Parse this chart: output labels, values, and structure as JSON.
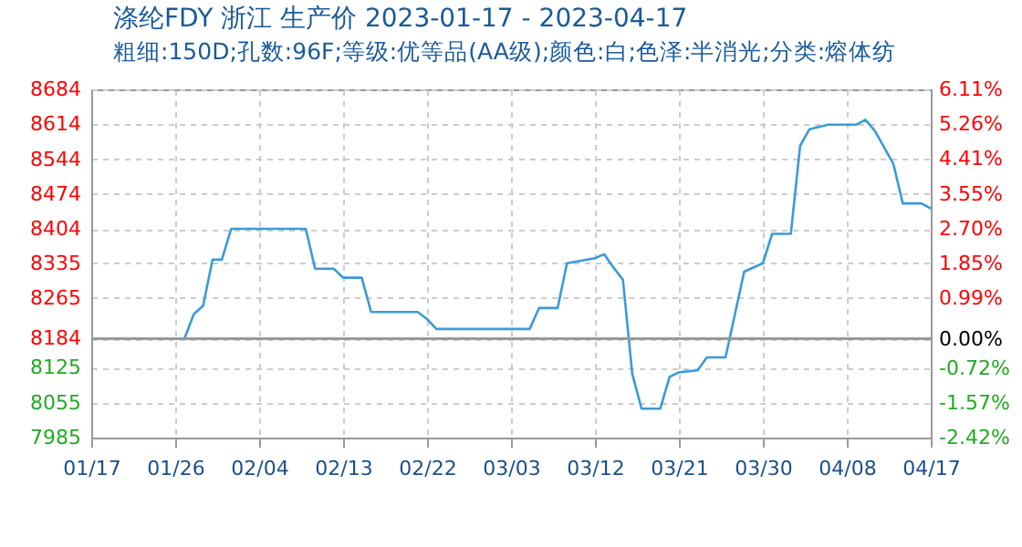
{
  "chart_data": {
    "type": "line",
    "title": "涤纶FDY 浙江 生产价 2023-01-17 - 2023-04-17",
    "subtitle": "粗细:150D;孔数:96F;等级:优等品(AA级);颜色:白;色泽:半消光;分类:熔体纺",
    "x": [
      "2023-01-17",
      "2023-01-27",
      "2023-01-28",
      "2023-01-29",
      "2023-01-30",
      "2023-01-31",
      "2023-02-01",
      "2023-02-09",
      "2023-02-10",
      "2023-02-12",
      "2023-02-13",
      "2023-02-15",
      "2023-02-16",
      "2023-02-21",
      "2023-02-22",
      "2023-02-23",
      "2023-03-05",
      "2023-03-06",
      "2023-03-08",
      "2023-03-09",
      "2023-03-12",
      "2023-03-13",
      "2023-03-14",
      "2023-03-15",
      "2023-03-16",
      "2023-03-17",
      "2023-03-19",
      "2023-03-20",
      "2023-03-21",
      "2023-03-23",
      "2023-03-24",
      "2023-03-26",
      "2023-03-28",
      "2023-03-30",
      "2023-03-31",
      "2023-04-02",
      "2023-04-03",
      "2023-04-04",
      "2023-04-06",
      "2023-04-09",
      "2023-04-10",
      "2023-04-11",
      "2023-04-13",
      "2023-04-14",
      "2023-04-16",
      "2023-04-17"
    ],
    "series": [
      {
        "color": "#3a9ad9",
        "values": [
          8184,
          8184,
          8233,
          8250,
          8342,
          8342,
          8404,
          8404,
          8324,
          8324,
          8306,
          8306,
          8237,
          8237,
          8223,
          8203,
          8203,
          8245,
          8245,
          8335,
          8345,
          8353,
          8326,
          8302,
          8113,
          8043,
          8043,
          8107,
          8116,
          8120,
          8146,
          8146,
          8318,
          8335,
          8394,
          8394,
          8571,
          8604,
          8613,
          8613,
          8623,
          8601,
          8534,
          8455,
          8455,
          8445
        ]
      }
    ],
    "xlim": [
      "2023-01-17",
      "2023-04-17"
    ],
    "xticks": [
      {
        "value": "2023-01-17",
        "label": "01/17"
      },
      {
        "value": "2023-01-26",
        "label": "01/26"
      },
      {
        "value": "2023-02-04",
        "label": "02/04"
      },
      {
        "value": "2023-02-13",
        "label": "02/13"
      },
      {
        "value": "2023-02-22",
        "label": "02/22"
      },
      {
        "value": "2023-03-03",
        "label": "03/03"
      },
      {
        "value": "2023-03-12",
        "label": "03/12"
      },
      {
        "value": "2023-03-21",
        "label": "03/21"
      },
      {
        "value": "2023-03-30",
        "label": "03/30"
      },
      {
        "value": "2023-04-08",
        "label": "04/08"
      },
      {
        "value": "2023-04-17",
        "label": "04/17"
      }
    ],
    "ylim": [
      7985,
      8684
    ],
    "yticks": [
      7985,
      8055,
      8125,
      8184,
      8265,
      8335,
      8404,
      8474,
      8544,
      8614,
      8684
    ],
    "y2lim": [
      -2.42,
      6.11
    ],
    "y2ticks": [
      {
        "value": -2.42,
        "label": "-2.42%"
      },
      {
        "value": -1.57,
        "label": "-1.57%"
      },
      {
        "value": -0.72,
        "label": "-0.72%"
      },
      {
        "value": 0,
        "label": "0.00%"
      },
      {
        "value": 0.99,
        "label": "0.99%"
      },
      {
        "value": 1.85,
        "label": "1.85%"
      },
      {
        "value": 2.7,
        "label": "2.70%"
      },
      {
        "value": 3.55,
        "label": "3.55%"
      },
      {
        "value": 4.41,
        "label": "4.41%"
      },
      {
        "value": 5.26,
        "label": "5.26%"
      },
      {
        "value": 6.11,
        "label": "6.11%"
      }
    ],
    "ref_lines": [
      {
        "axis": "y2",
        "value": 0,
        "color": "#999999"
      }
    ],
    "grid": true,
    "marker": "none",
    "line_style": "solid"
  }
}
